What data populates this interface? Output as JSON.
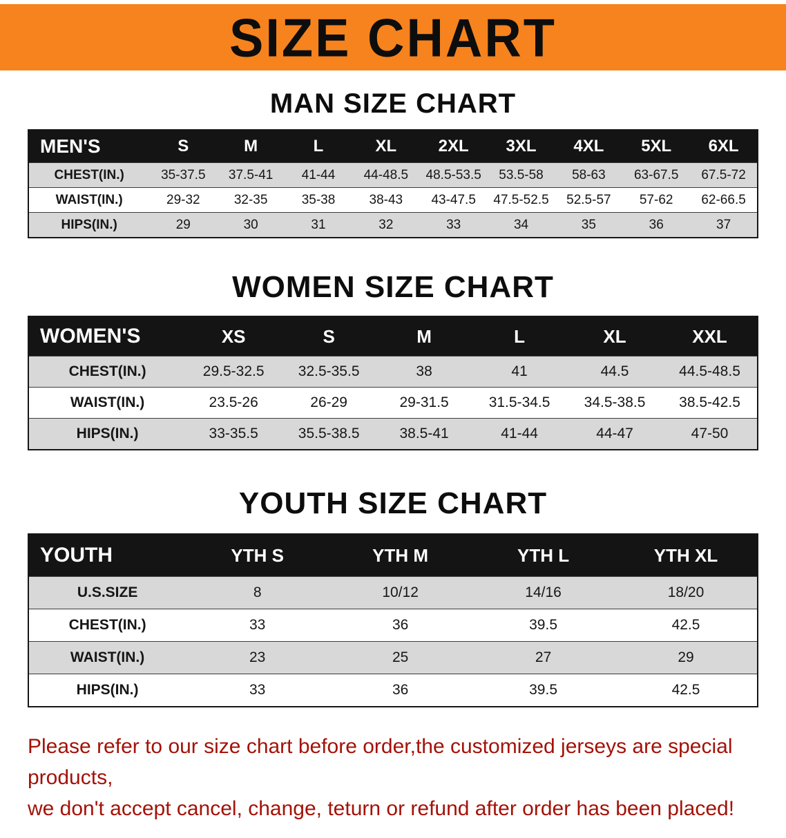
{
  "banner": {
    "title": "SIZE CHART",
    "bg_color": "#F6831D",
    "text_color": "#0d0d0d"
  },
  "colors": {
    "table_header_bg": "#141414",
    "table_header_text": "#ffffff",
    "row_alt_bg": "#d8d8d8",
    "footer_text": "#A31208"
  },
  "chart_data": [
    {
      "type": "table",
      "title": "MAN SIZE CHART",
      "corner_label": "MEN'S",
      "columns": [
        "S",
        "M",
        "L",
        "XL",
        "2XL",
        "3XL",
        "4XL",
        "5XL",
        "6XL"
      ],
      "rows": [
        {
          "label": "CHEST(IN.)",
          "values": [
            "35-37.5",
            "37.5-41",
            "41-44",
            "44-48.5",
            "48.5-53.5",
            "53.5-58",
            "58-63",
            "63-67.5",
            "67.5-72"
          ]
        },
        {
          "label": "WAIST(IN.)",
          "values": [
            "29-32",
            "32-35",
            "35-38",
            "38-43",
            "43-47.5",
            "47.5-52.5",
            "52.5-57",
            "57-62",
            "62-66.5"
          ]
        },
        {
          "label": "HIPS(IN.)",
          "values": [
            "29",
            "30",
            "31",
            "32",
            "33",
            "34",
            "35",
            "36",
            "37"
          ]
        }
      ]
    },
    {
      "type": "table",
      "title": "WOMEN SIZE CHART",
      "corner_label": "WOMEN'S",
      "columns": [
        "XS",
        "S",
        "M",
        "L",
        "XL",
        "XXL"
      ],
      "rows": [
        {
          "label": "CHEST(IN.)",
          "values": [
            "29.5-32.5",
            "32.5-35.5",
            "38",
            "41",
            "44.5",
            "44.5-48.5"
          ]
        },
        {
          "label": "WAIST(IN.)",
          "values": [
            "23.5-26",
            "26-29",
            "29-31.5",
            "31.5-34.5",
            "34.5-38.5",
            "38.5-42.5"
          ]
        },
        {
          "label": "HIPS(IN.)",
          "values": [
            "33-35.5",
            "35.5-38.5",
            "38.5-41",
            "41-44",
            "44-47",
            "47-50"
          ]
        }
      ]
    },
    {
      "type": "table",
      "title": "YOUTH SIZE CHART",
      "corner_label": "YOUTH",
      "columns": [
        "YTH S",
        "YTH M",
        "YTH L",
        "YTH XL"
      ],
      "rows": [
        {
          "label": "U.S.SIZE",
          "values": [
            "8",
            "10/12",
            "14/16",
            "18/20"
          ]
        },
        {
          "label": "CHEST(IN.)",
          "values": [
            "33",
            "36",
            "39.5",
            "42.5"
          ]
        },
        {
          "label": "WAIST(IN.)",
          "values": [
            "23",
            "25",
            "27",
            "29"
          ]
        },
        {
          "label": "HIPS(IN.)",
          "values": [
            "33",
            "36",
            "39.5",
            "42.5"
          ]
        }
      ]
    }
  ],
  "footer": {
    "line1": "Please refer to our size chart before order,the customized jerseys are special products,",
    "line2": "we don't accept cancel, change, teturn or refund after order has been placed!"
  }
}
